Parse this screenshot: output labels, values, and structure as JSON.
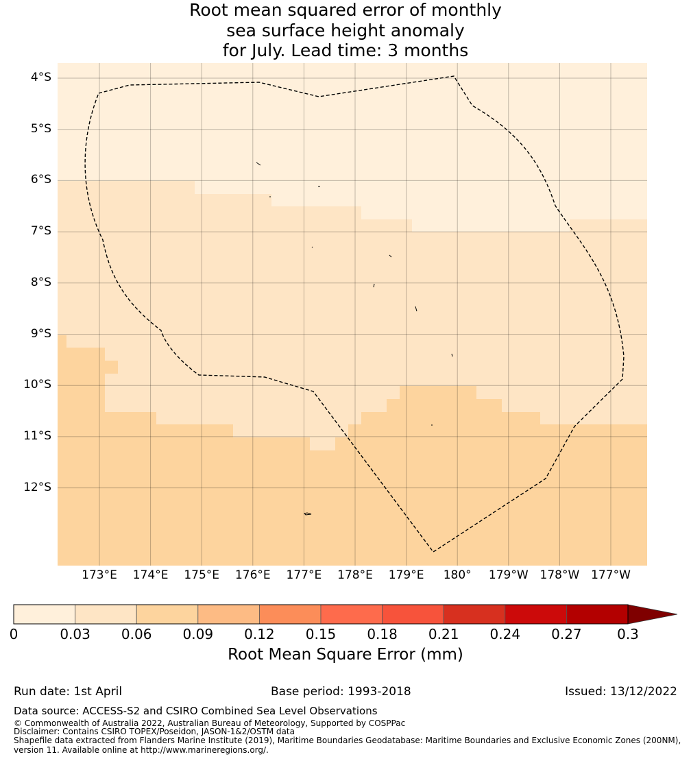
{
  "title": {
    "line1": "Root mean squared error of monthly",
    "line2": "sea surface height anomaly",
    "line3": "for July. Lead time: 3 months"
  },
  "map": {
    "lat_ticks": [
      "4°S",
      "5°S",
      "6°S",
      "7°S",
      "8°S",
      "9°S",
      "10°S",
      "11°S",
      "12°S"
    ],
    "lon_ticks": [
      "173°E",
      "174°E",
      "175°E",
      "176°E",
      "177°E",
      "178°E",
      "179°E",
      "180°",
      "179°W",
      "178°W",
      "177°W"
    ],
    "field_colors": {
      "bin_0_003": "#fff0db",
      "bin_003_006": "#fee5c5",
      "bin_006_009": "#fdd49e"
    },
    "boundary_style": "dashed",
    "grid": true
  },
  "colorbar": {
    "ticks": [
      "0",
      "0.03",
      "0.06",
      "0.09",
      "0.12",
      "0.15",
      "0.18",
      "0.21",
      "0.24",
      "0.27",
      "0.3"
    ],
    "colors": [
      "#fff0db",
      "#fee5c5",
      "#fdd49e",
      "#fdbb84",
      "#fc8d59",
      "#fe6b4c",
      "#f7533b",
      "#d7301f",
      "#cc0a0a",
      "#b30000"
    ],
    "extend_color": "#7f0000",
    "extend": "max",
    "label": "Root Mean Square Error (mm)"
  },
  "footer": {
    "run_date": "Run date: 1st April",
    "base_period": "Base period: 1993-2018",
    "issued": "Issued: 13/12/2022",
    "data_source": "Data source: ACCESS-S2 and CSIRO Combined Sea Level Observations",
    "copyright": "© Commonwealth of Australia 2022, Australian Bureau of Meteorology, Supported by COSPPac",
    "disclaimer": "Disclaimer: Contains CSIRO TOPEX/Poseidon, JASON-1&2/OSTM data",
    "shapefile1": "Shapefile data extracted from Flanders Marine Institute (2019), Maritime Boundaries Geodatabase: Maritime Boundaries and Exclusive Economic Zones (200NM),",
    "shapefile2": "version 11. Available online at http://www.marineregions.org/."
  }
}
